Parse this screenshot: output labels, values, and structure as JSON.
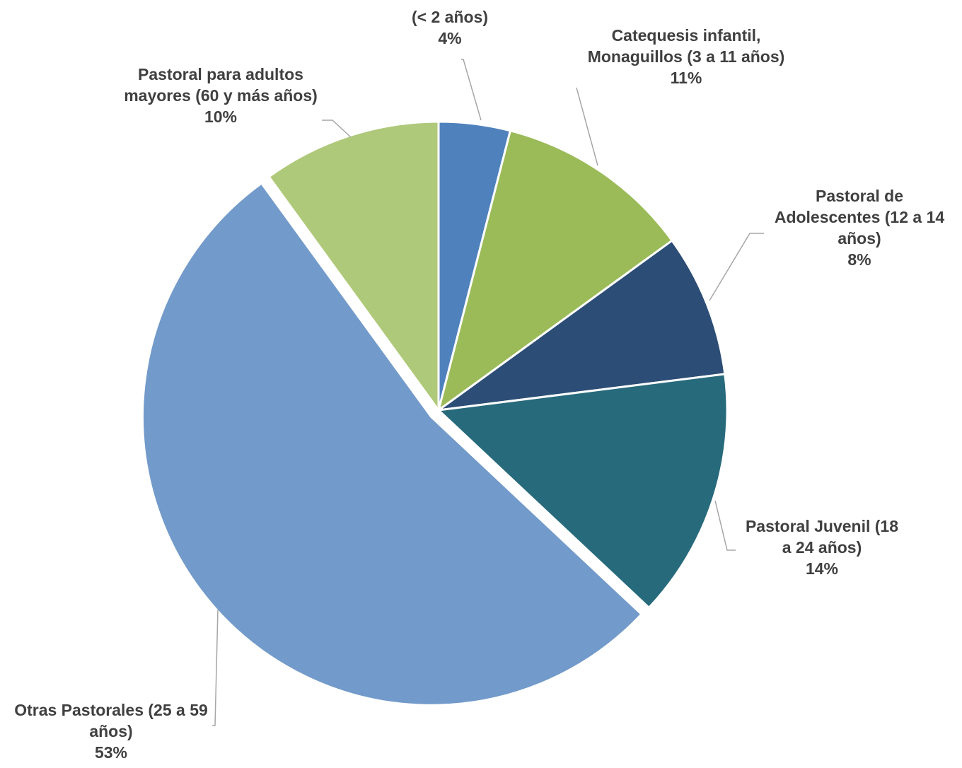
{
  "chart_data": {
    "type": "pie",
    "title": "",
    "series": [
      {
        "name": "",
        "slices": [
          {
            "label_lines": [
              "(< 2 años)"
            ],
            "value": 4,
            "value_label": "4%",
            "color": "#4f81bd"
          },
          {
            "label_lines": [
              "Catequesis infantil,",
              "Monaguillos (3 a 11 años)"
            ],
            "value": 11,
            "value_label": "11%",
            "color": "#9bbb59"
          },
          {
            "label_lines": [
              "Pastoral de",
              "Adolescentes (12 a 14",
              "años)"
            ],
            "value": 8,
            "value_label": "8%",
            "color": "#2c4d75"
          },
          {
            "label_lines": [
              "Pastoral Juvenil (18",
              "a 24 años)"
            ],
            "value": 14,
            "value_label": "14%",
            "color": "#276a7c"
          },
          {
            "label_lines": [
              "Otras Pastorales  (25 a 59",
              "años)"
            ],
            "value": 53,
            "value_label": "53%",
            "color": "#729aca"
          },
          {
            "label_lines": [
              "Pastoral para adultos",
              "mayores (60 y más años)"
            ],
            "value": 10,
            "value_label": "10%",
            "color": "#afc97a"
          }
        ]
      }
    ],
    "legend": "none",
    "data_labels": "outside with leader lines"
  }
}
